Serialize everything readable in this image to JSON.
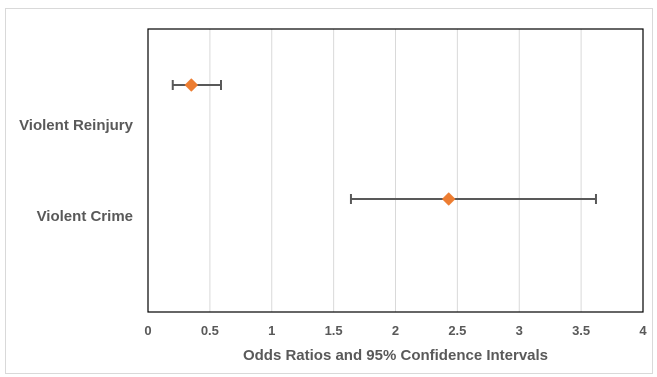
{
  "chart_data": {
    "type": "scatter",
    "title": "",
    "xlabel": "Odds Ratios and 95% Confidence Intervals",
    "ylabel": "",
    "xlim": [
      0,
      4
    ],
    "x_ticks": [
      0,
      0.5,
      1,
      1.5,
      2,
      2.5,
      3,
      3.5,
      4
    ],
    "x_tick_labels": [
      "0",
      "0.5",
      "1",
      "1.5",
      "2",
      "2.5",
      "3",
      "3.5",
      "4"
    ],
    "categories": [
      "Violent Reinjury",
      "Violent Crime"
    ],
    "series": [
      {
        "points": [
          {
            "category": "Violent Reinjury",
            "x": 0.35,
            "ci_low": 0.2,
            "ci_high": 0.59
          },
          {
            "category": "Violent Crime",
            "x": 2.43,
            "ci_low": 1.64,
            "ci_high": 3.62
          }
        ],
        "marker": "diamond",
        "marker_color": "#ed7d31",
        "error_bar_color": "#595959"
      }
    ],
    "grid": "vertical",
    "legend": "none"
  },
  "colors": {
    "gridline": "#d9d9d9",
    "axis": "#000000",
    "text": "#595959"
  }
}
